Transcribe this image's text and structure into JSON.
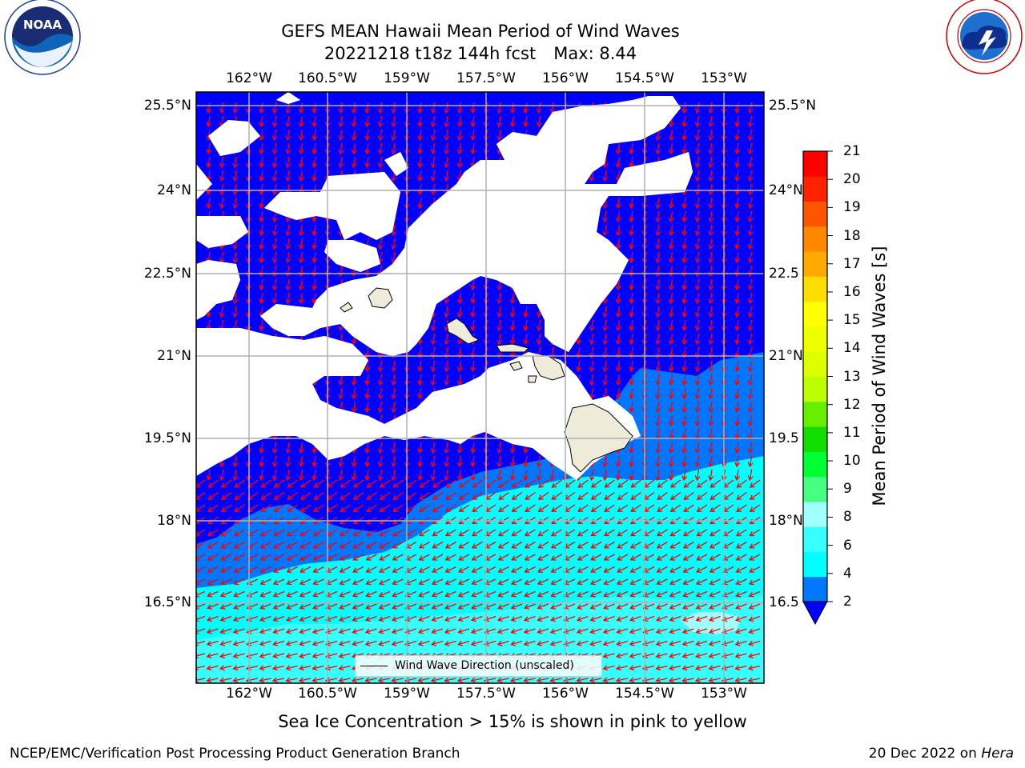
{
  "title": {
    "line1": "GEFS MEAN Hawaii Mean Period of Wind Waves",
    "run": "20221218 t18z 144h fcst",
    "max": "Max: 8.44"
  },
  "map": {
    "lon_labels": [
      "162°W",
      "160.5°W",
      "159°W",
      "157.5°W",
      "156°W",
      "154.5°W",
      "153°W"
    ],
    "lat_labels": [
      "25.5°N",
      "24°N",
      "22.5°N",
      "21°N",
      "19.5°N",
      "18°N",
      "16.5°N"
    ],
    "right_lat_labels": [
      "25.5°N",
      "24°N",
      "22.5",
      "21°N",
      "19.5",
      "18°N",
      "16.5"
    ],
    "legend_label": "Wind Wave Direction (unscaled)",
    "arrow_color": "#ff0000",
    "land_color": "#efebdb"
  },
  "colorbar": {
    "label": "Mean Period of Wind Waves [s]",
    "ticks": [
      "2",
      "4",
      "6",
      "8",
      "9",
      "10",
      "11",
      "12",
      "13",
      "14",
      "15",
      "16",
      "17",
      "18",
      "19",
      "20",
      "21"
    ],
    "colors": [
      "#0077ff",
      "#00ffff",
      "#38ffff",
      "#a0ffff",
      "#45ff80",
      "#00ff33",
      "#11dd00",
      "#66ee00",
      "#bbff00",
      "#ddff00",
      "#eeff00",
      "#ffff00",
      "#ffdd00",
      "#ffaa00",
      "#ff8800",
      "#ff5500",
      "#ff2200",
      "#ff0000"
    ],
    "extend_color": "#0000ff"
  },
  "field_colors": {
    "below_2": "#0000ff",
    "p2_4": "#0077ff",
    "p4_6": "#00ffff",
    "p6_8": "#38ffff",
    "p8_9": "#a0ffff"
  },
  "footer": {
    "note": "Sea Ice Concentration > 15% is shown in pink to yellow",
    "left": "NCEP/EMC/Verification Post Processing Product Generation Branch",
    "right_date": "20 Dec 2022 on ",
    "right_host": "Hera"
  },
  "logos": {
    "noaa_text": "NOAA",
    "noaa_ring": "NATIONAL OCEANIC AND ATMOSPHERIC ADMINISTRATION · U.S. DEPARTMENT OF COMMERCE",
    "nws_ring": "NATIONAL WEATHER SERVICE"
  }
}
